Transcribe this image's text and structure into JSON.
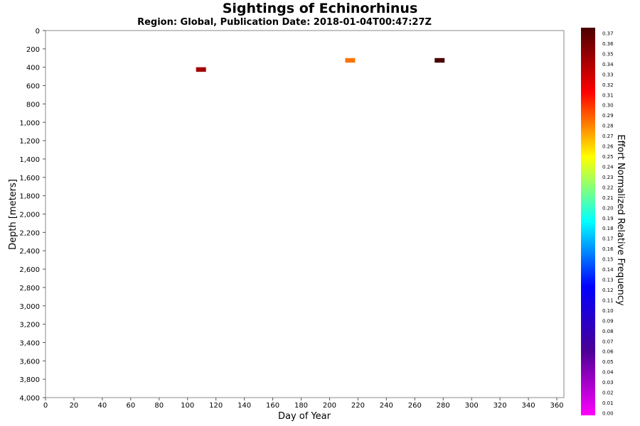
{
  "chart_data": {
    "type": "heatmap",
    "title": "Sightings of Echinorhinus",
    "subtitle": "Region: Global, Publication Date: 2018-01-04T00:47:27Z",
    "xlabel": "Day of Year",
    "ylabel": "Depth [meters]",
    "xlim": [
      0,
      365
    ],
    "ylim": [
      0,
      4000
    ],
    "y_inverted": true,
    "x_ticks": [
      0,
      20,
      40,
      60,
      80,
      100,
      120,
      140,
      160,
      180,
      200,
      220,
      240,
      260,
      280,
      300,
      320,
      340,
      360
    ],
    "y_ticks": [
      0,
      200,
      400,
      600,
      800,
      1000,
      1200,
      1400,
      1600,
      1800,
      2000,
      2200,
      2400,
      2600,
      2800,
      3000,
      3200,
      3400,
      3600,
      3800,
      4000
    ],
    "y_tick_labels": [
      "0",
      "200",
      "400",
      "600",
      "800",
      "1,000",
      "1,200",
      "1,400",
      "1,600",
      "1,800",
      "2,000",
      "2,200",
      "2,400",
      "2,600",
      "2,800",
      "3,000",
      "3,200",
      "3,400",
      "3,600",
      "3,800",
      "4,000"
    ],
    "cells": [
      {
        "day_start": 106,
        "day_end": 113,
        "depth_start": 400,
        "depth_end": 450,
        "value": 0.34
      },
      {
        "day_start": 211,
        "day_end": 218,
        "depth_start": 300,
        "depth_end": 350,
        "value": 0.28
      },
      {
        "day_start": 274,
        "day_end": 281,
        "depth_start": 300,
        "depth_end": 350,
        "value": 0.37
      }
    ],
    "colorbar": {
      "label": "Effort Normalized Relative Frequency",
      "min": 0.0,
      "max": 0.37,
      "ticks": [
        "0.00",
        "0.01",
        "0.02",
        "0.03",
        "0.04",
        "0.05",
        "0.06",
        "0.07",
        "0.08",
        "0.09",
        "0.10",
        "0.11",
        "0.12",
        "0.13",
        "0.14",
        "0.15",
        "0.16",
        "0.17",
        "0.18",
        "0.19",
        "0.20",
        "0.21",
        "0.22",
        "0.23",
        "0.24",
        "0.25",
        "0.26",
        "0.27",
        "0.28",
        "0.29",
        "0.30",
        "0.31",
        "0.32",
        "0.33",
        "0.34",
        "0.35",
        "0.36",
        "0.37"
      ],
      "color_stops": [
        "#ff00ff",
        "#4b0096",
        "#0000ff",
        "#00ffff",
        "#ffff00",
        "#ff0000",
        "#4a0000"
      ]
    },
    "grid": false,
    "legend": "right colorbar"
  }
}
